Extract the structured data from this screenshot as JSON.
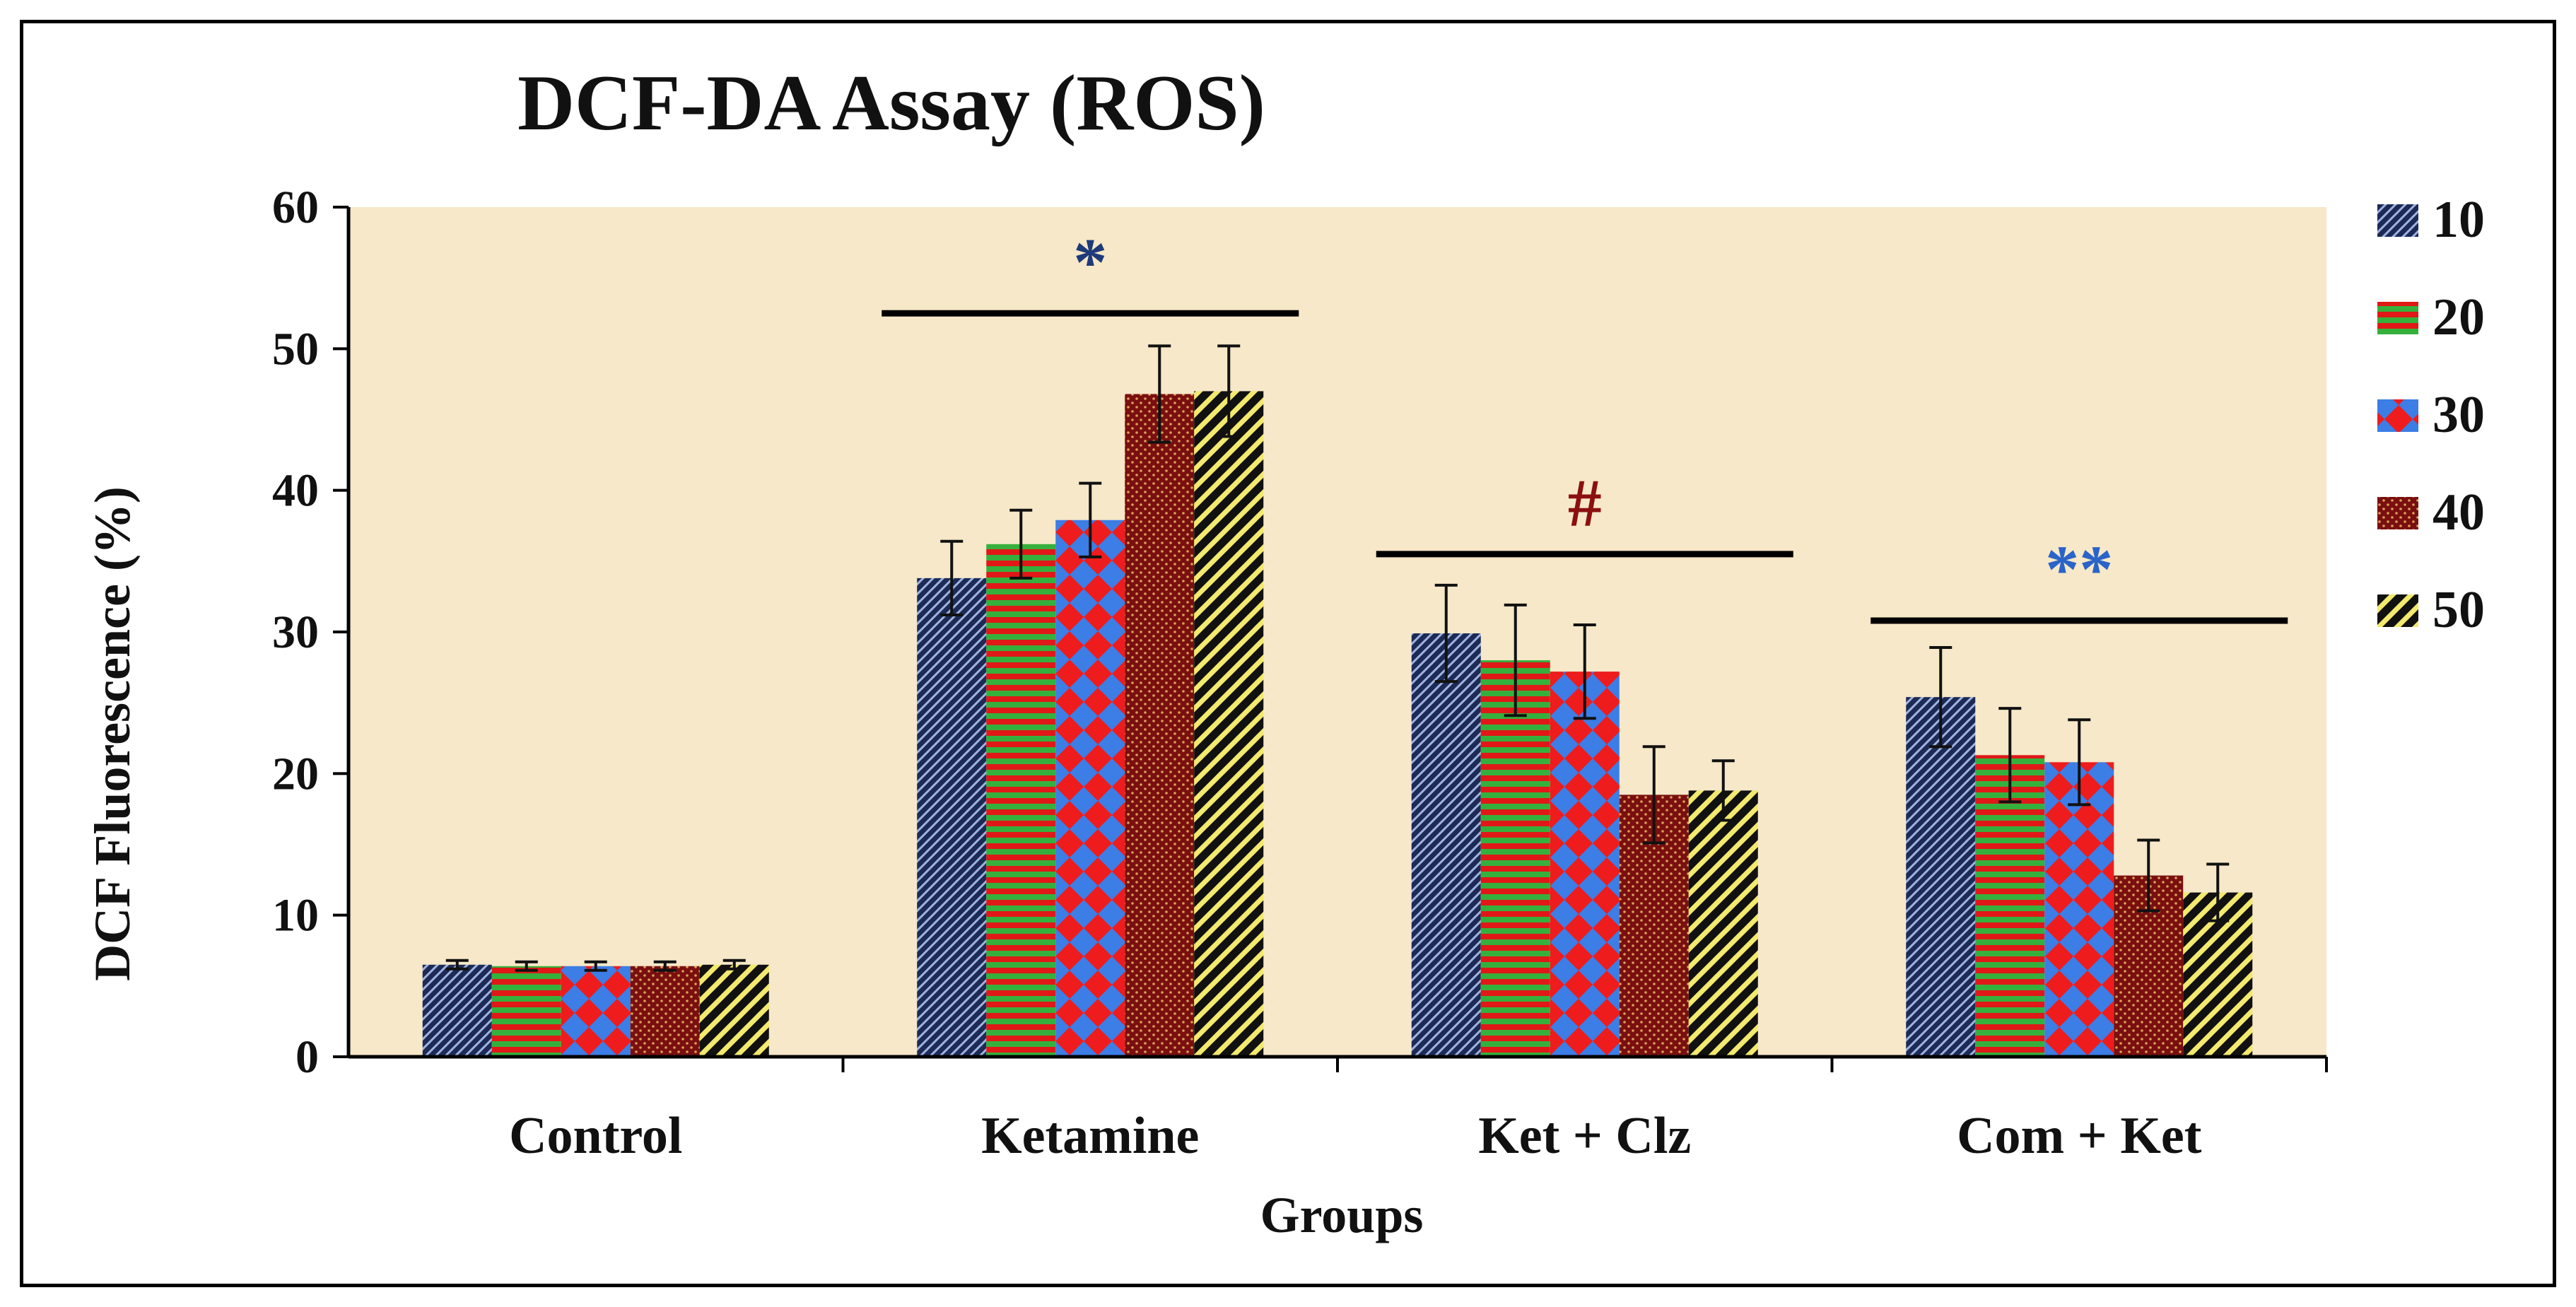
{
  "chart_data": {
    "type": "bar",
    "title": "DCF-DA Assay (ROS)",
    "xlabel": "Groups",
    "ylabel": "DCF Fluorescence (%)",
    "ylim": [
      0,
      60
    ],
    "yticks": [
      "0",
      "10",
      "20",
      "30",
      "40",
      "50",
      "60"
    ],
    "categories": [
      "Control",
      "Ketamine",
      "Ket + Clz",
      "Com + Ket"
    ],
    "series": [
      {
        "name": "10",
        "values": [
          6.5,
          33.8,
          29.9,
          25.4
        ],
        "errors": [
          0.3,
          2.6,
          3.4,
          3.5
        ],
        "colors": [
          "#1c2a55",
          "#9fb3e0"
        ]
      },
      {
        "name": "20",
        "values": [
          6.4,
          36.2,
          28.0,
          21.3
        ],
        "errors": [
          0.3,
          2.4,
          3.9,
          3.3
        ],
        "colors": [
          "#e01818",
          "#36b03c"
        ]
      },
      {
        "name": "30",
        "values": [
          6.4,
          37.9,
          27.2,
          20.8
        ],
        "errors": [
          0.3,
          2.6,
          3.3,
          3.0
        ],
        "colors": [
          "#ee1c1c",
          "#3c7de6"
        ]
      },
      {
        "name": "40",
        "values": [
          6.4,
          46.8,
          18.5,
          12.8
        ],
        "errors": [
          0.3,
          3.4,
          3.4,
          2.5
        ],
        "colors": [
          "#7a0f0f",
          "#d9a15a"
        ]
      },
      {
        "name": "50",
        "values": [
          6.5,
          47.0,
          18.8,
          11.6
        ],
        "errors": [
          0.3,
          3.2,
          2.1,
          2.0
        ],
        "colors": [
          "#111111",
          "#f2e96e"
        ]
      }
    ],
    "legend": {
      "position": "right"
    },
    "annotations": [
      {
        "text": "*",
        "group": "Ketamine",
        "color": "#1f3a7a",
        "level": 52.5
      },
      {
        "text": "#",
        "group": "Ket + Clz",
        "color": "#8b1010",
        "level": 35.5
      },
      {
        "text": "**",
        "group": "Com + Ket",
        "color": "#2a64c8",
        "level": 30.8
      }
    ],
    "plot_background": "#f6e8c8"
  }
}
